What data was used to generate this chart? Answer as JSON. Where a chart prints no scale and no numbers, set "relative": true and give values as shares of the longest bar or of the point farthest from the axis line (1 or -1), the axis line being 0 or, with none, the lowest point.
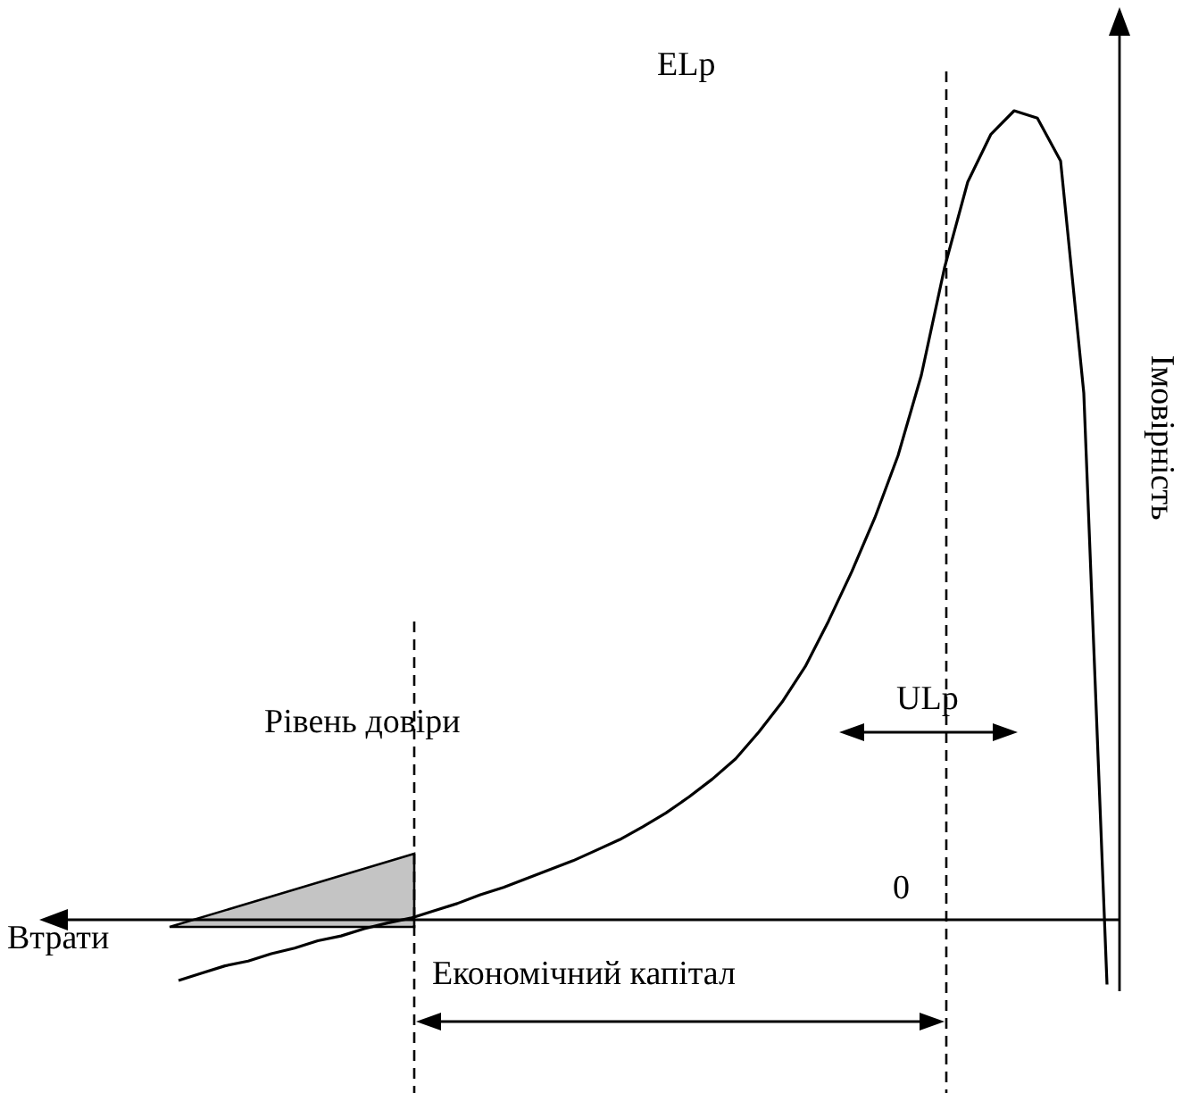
{
  "chart_data": {
    "type": "line",
    "relative": true,
    "ylabel": "Імовірність",
    "categories": [
      null,
      null,
      null,
      null,
      null,
      null,
      null,
      null,
      null,
      null,
      null,
      null,
      null,
      null,
      null,
      null,
      null,
      null,
      null,
      null,
      null,
      null,
      null,
      null,
      null,
      null,
      null,
      null,
      null,
      null,
      null,
      null,
      null,
      null,
      null,
      null,
      null,
      null,
      null,
      null,
      null
    ],
    "series": [
      {
        "color": "#000000",
        "values": [
          -0.075,
          -0.066,
          -0.057,
          -0.051,
          -0.042,
          -0.035,
          -0.026,
          -0.02,
          -0.011,
          -0.004,
          0.002,
          0.011,
          0.02,
          0.031,
          0.04,
          0.051,
          0.062,
          0.073,
          0.086,
          0.099,
          0.115,
          0.132,
          0.152,
          0.174,
          0.199,
          0.232,
          0.269,
          0.313,
          0.369,
          0.43,
          0.497,
          0.574,
          0.673,
          0.806,
          0.912,
          0.971,
          1,
          0.991,
          0.938,
          0.651,
          -0.08
        ]
      }
    ],
    "annotations": [
      "ELp",
      "ULp",
      "Рівень довіри",
      "Втрати",
      "0",
      "Економічний капітал"
    ],
    "marker": "none",
    "line_style": "solid"
  }
}
